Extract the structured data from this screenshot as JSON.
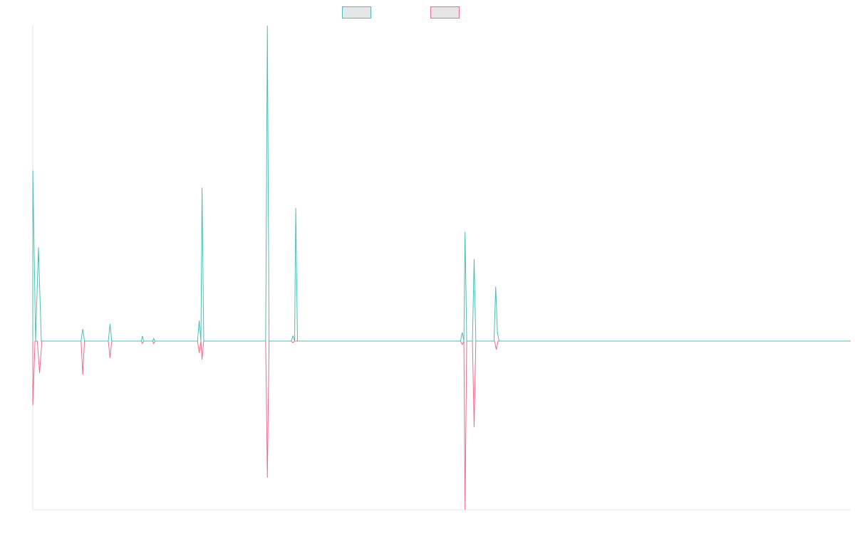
{
  "chart_data": {
    "type": "line",
    "title": "",
    "xlabel": "",
    "ylabel": "",
    "x_range": [
      0,
      144
    ],
    "ylim": [
      -100,
      100
    ],
    "grid": false,
    "legend": {
      "placement": "top-center",
      "entries": [
        {
          "name": "",
          "stroke": "#4bbfb6",
          "fill": "#e6e6e6"
        },
        {
          "name": "",
          "stroke": "#ee6b8c",
          "fill": "#e6e6e6"
        }
      ]
    },
    "series": [
      {
        "name": "",
        "color": "#4bbfb6",
        "points": [
          [
            0,
            0
          ],
          [
            0.01,
            100
          ],
          [
            0.5,
            0
          ],
          [
            1,
            55
          ],
          [
            1.5,
            0
          ],
          [
            8.5,
            0
          ],
          [
            8.8,
            7
          ],
          [
            9.1,
            0
          ],
          [
            13.3,
            0
          ],
          [
            13.6,
            10
          ],
          [
            13.9,
            0
          ],
          [
            19.1,
            0
          ],
          [
            19.3,
            3
          ],
          [
            19.5,
            0
          ],
          [
            21.1,
            0
          ],
          [
            21.3,
            1.5
          ],
          [
            21.5,
            0
          ],
          [
            29,
            0
          ],
          [
            29.3,
            12
          ],
          [
            29.6,
            0
          ],
          [
            29.8,
            90
          ],
          [
            30.1,
            0
          ],
          [
            41,
            0
          ],
          [
            41.3,
            185
          ],
          [
            41.6,
            0
          ],
          [
            45.5,
            0
          ],
          [
            45.8,
            3
          ],
          [
            46.1,
            0
          ],
          [
            46.3,
            78
          ],
          [
            46.6,
            0
          ],
          [
            75.3,
            0
          ],
          [
            75.6,
            5
          ],
          [
            75.9,
            0
          ],
          [
            76.1,
            64
          ],
          [
            76.4,
            0
          ],
          [
            77.4,
            0
          ],
          [
            77.7,
            48
          ],
          [
            78,
            0
          ],
          [
            81.2,
            0
          ],
          [
            81.5,
            32
          ],
          [
            81.8,
            5
          ],
          [
            82.1,
            0
          ],
          [
            144,
            0
          ]
        ]
      },
      {
        "name": "",
        "color": "#ee6b8c",
        "points": [
          [
            0,
            0
          ],
          [
            0.01,
            -38
          ],
          [
            0.4,
            0
          ],
          [
            0.8,
            0
          ],
          [
            1.2,
            -19
          ],
          [
            1.6,
            0
          ],
          [
            8.5,
            0
          ],
          [
            8.8,
            -20
          ],
          [
            9.1,
            0
          ],
          [
            13.3,
            0
          ],
          [
            13.6,
            -10
          ],
          [
            13.9,
            0
          ],
          [
            19.1,
            0
          ],
          [
            19.3,
            -1.5
          ],
          [
            19.5,
            0
          ],
          [
            21.1,
            0
          ],
          [
            21.3,
            -1.5
          ],
          [
            21.5,
            0
          ],
          [
            29,
            0
          ],
          [
            29.3,
            -7
          ],
          [
            29.6,
            0
          ],
          [
            29.8,
            -11
          ],
          [
            30.1,
            0
          ],
          [
            41,
            0
          ],
          [
            41.3,
            -81
          ],
          [
            41.6,
            0
          ],
          [
            45.5,
            0
          ],
          [
            45.8,
            -1
          ],
          [
            46.1,
            0
          ],
          [
            75.3,
            0
          ],
          [
            75.6,
            -2
          ],
          [
            75.9,
            0
          ],
          [
            76.1,
            -100
          ],
          [
            76.4,
            0
          ],
          [
            77.4,
            0
          ],
          [
            77.7,
            -51
          ],
          [
            78,
            0
          ],
          [
            81.3,
            0
          ],
          [
            81.6,
            -5
          ],
          [
            81.9,
            0
          ],
          [
            144,
            0
          ]
        ]
      }
    ]
  }
}
